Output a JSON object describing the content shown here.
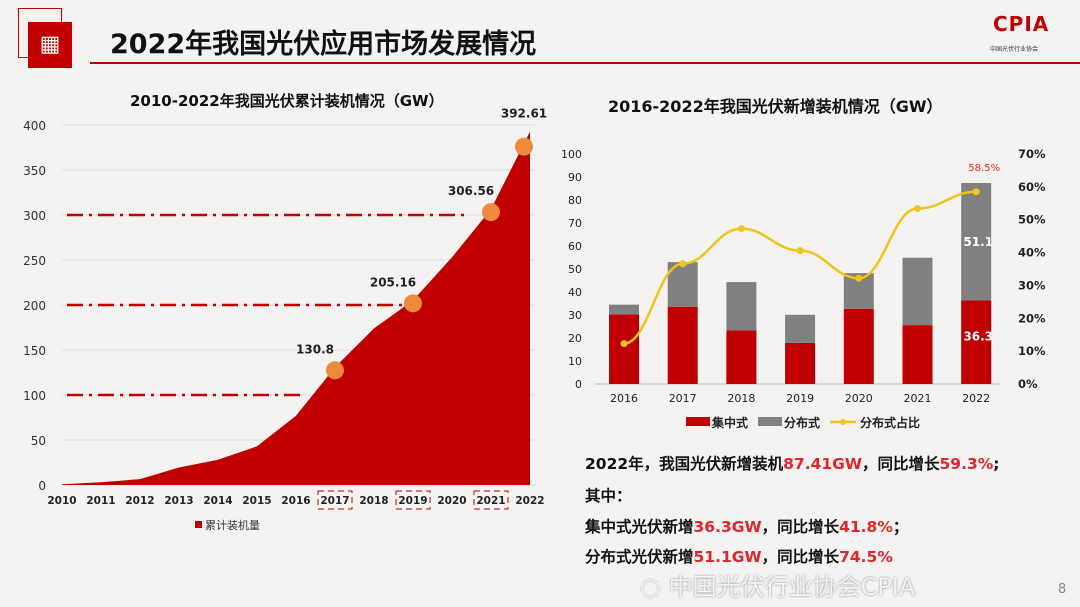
{
  "header": {
    "title": "2022年我国光伏应用市场发展情况",
    "logo_text": "CPIA",
    "logo_sub": "中国光伏行业协会"
  },
  "chart_data": [
    {
      "type": "area",
      "title": "2010-2022年我国光伏累计装机情况（GW）",
      "categories": [
        "2010",
        "2011",
        "2012",
        "2013",
        "2014",
        "2015",
        "2016",
        "2017",
        "2018",
        "2019",
        "2020",
        "2021",
        "2022"
      ],
      "values": [
        0.86,
        3.1,
        6.5,
        19.4,
        28,
        43,
        77,
        130.8,
        174,
        205.16,
        253,
        306.56,
        392.61
      ],
      "highlight_labels": {
        "7": "130.8",
        "9": "205.16",
        "11": "306.56",
        "12": "392.61"
      },
      "highlight_years": [
        "2017",
        "2019",
        "2021"
      ],
      "reference_lines": [
        100,
        200,
        300
      ],
      "yticks": [
        "0",
        "50",
        "100",
        "150",
        "200",
        "250",
        "300",
        "350",
        "400"
      ],
      "ylim": [
        0,
        400
      ],
      "legend": "累计装机量",
      "legend_position": "bottom",
      "colors": {
        "area": "#c00000",
        "marker": "#ee8a3c"
      }
    },
    {
      "type": "bar",
      "title": "2016-2022年我国光伏新增装机情况（GW）",
      "categories": [
        "2016",
        "2017",
        "2018",
        "2019",
        "2020",
        "2021",
        "2022"
      ],
      "series": [
        {
          "name": "集中式",
          "values": [
            30.3,
            33.6,
            23.3,
            17.9,
            32.7,
            25.6,
            36.3
          ],
          "color": "#c00000"
        },
        {
          "name": "分布式",
          "values": [
            4.2,
            19.4,
            21,
            12.2,
            15.5,
            29.3,
            51.1
          ],
          "color": "#808080"
        },
        {
          "name": "分布式占比",
          "type": "line",
          "axis": "right",
          "values": [
            12.3,
            36.6,
            47.3,
            40.6,
            32.2,
            53.4,
            58.5
          ],
          "color": "#f0c419"
        }
      ],
      "data_labels": {
        "centralized_2022": "36.3",
        "distributed_2022": "51.1",
        "ratio_2022": "58.5%"
      },
      "yticks": [
        "0",
        "10",
        "20",
        "30",
        "40",
        "50",
        "60",
        "70",
        "80",
        "90",
        "100"
      ],
      "y2ticks": [
        "0%",
        "10%",
        "20%",
        "30%",
        "40%",
        "50%",
        "60%",
        "70%"
      ],
      "ylim": [
        0,
        100
      ],
      "y2lim": [
        0,
        70
      ],
      "legend_position": "bottom"
    }
  ],
  "summary": {
    "l1": [
      "2022年，我国光伏新增装机",
      "87.41GW",
      "，同比增长",
      "59.3%",
      ";"
    ],
    "l2": "其中：",
    "l3": [
      "集中式光伏新增",
      "36.3GW",
      "，同比增长",
      "41.8%",
      "；"
    ],
    "l4": [
      "分布式光伏新增",
      "51.1GW",
      "，同比增长",
      "74.5%"
    ]
  },
  "watermark": "中国光伏行业协会CPIA",
  "page_number": "8"
}
